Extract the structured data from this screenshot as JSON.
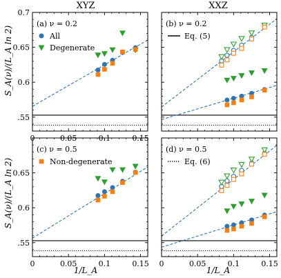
{
  "column_titles": [
    "XYZ",
    "XXZ"
  ],
  "ylabel": "S_A(ν)/(L_A ln 2)",
  "xlabel": "1/L_A",
  "colors": {
    "all": "#2e75b6",
    "degenerate": "#2ca02c",
    "nondegenerate": "#ff7f0e",
    "fit": "#2e75b6",
    "exact": "#000000"
  },
  "icons": {
    "all": "blue-circle-marker",
    "degenerate": "green-down-triangle-marker",
    "nondegenerate": "orange-square-marker",
    "eq5": "solid-black-line",
    "eq6": "dotted-black-line"
  },
  "chart_data": [
    {
      "id": "a",
      "panel_label": "(a)  ν = 0.2",
      "column": "XYZ",
      "type": "scatter",
      "xlim": [
        0,
        0.16
      ],
      "ylim": [
        0.53,
        0.7
      ],
      "xticks": [
        0,
        0.05,
        0.1,
        0.15
      ],
      "xtick_labels": [
        "0",
        "0.05",
        "0.1",
        "0.15"
      ],
      "yticks": [
        0.55,
        0.6,
        0.65,
        0.7
      ],
      "ytick_labels": [
        ".55",
        "0.6",
        "0.65",
        "0.7"
      ],
      "legend": [
        {
          "label": "All",
          "marker": "circle",
          "color": "#2e75b6"
        },
        {
          "label": "Degenerate",
          "marker": "triangle-down",
          "color": "#2ca02c"
        }
      ],
      "series": [
        {
          "name": "All",
          "marker": "circle",
          "filled": true,
          "color": "#2e75b6",
          "x": [
            0.0909,
            0.1,
            0.1111,
            0.125,
            0.1429
          ],
          "y": [
            0.6175,
            0.6255,
            0.6315,
            0.6425,
            0.6495
          ]
        },
        {
          "name": "Degenerate",
          "marker": "triangle-down",
          "filled": true,
          "color": "#2ca02c",
          "x": [
            0.0909,
            0.1,
            0.1111,
            0.125,
            0.1429
          ],
          "y": [
            0.639,
            0.641,
            0.6465,
            0.6705,
            0.646
          ]
        },
        {
          "name": "Non-degenerate",
          "marker": "square",
          "filled": true,
          "color": "#ff7f0e",
          "x": [
            0.0909,
            0.1,
            0.1111,
            0.125,
            0.1429
          ],
          "y": [
            0.611,
            0.6185,
            0.627,
            0.6435,
            0.647
          ]
        }
      ],
      "fits": [
        {
          "x": [
            0,
            0.16
          ],
          "y": [
            0.5655,
            0.6605
          ],
          "style": "dashed",
          "color": "#2e75b6"
        }
      ],
      "hlines": [
        {
          "y": 0.5528,
          "style": "solid"
        },
        {
          "y": 0.5385,
          "style": "dotted"
        }
      ]
    },
    {
      "id": "b",
      "panel_label": "(b)  ν = 0.2",
      "column": "XXZ",
      "type": "scatter",
      "xlim": [
        0,
        0.16
      ],
      "ylim": [
        0.53,
        0.7
      ],
      "xticks": [
        0,
        0.05,
        0.1,
        0.15
      ],
      "xtick_labels": [
        "",
        "",
        "",
        ""
      ],
      "yticks": [
        0.55,
        0.6,
        0.65,
        0.7
      ],
      "ytick_labels": [
        "",
        "",
        "",
        ""
      ],
      "legend": [
        {
          "label": "Eq. (5)",
          "marker": "solid-line",
          "color": "#000000"
        }
      ],
      "series": [
        {
          "name": "All (upper)",
          "marker": "circle",
          "filled": false,
          "color": "#2e75b6",
          "x": [
            0.0833,
            0.0909,
            0.1,
            0.1111,
            0.125,
            0.1429
          ],
          "y": [
            0.6305,
            0.6385,
            0.6455,
            0.653,
            0.664,
            0.68
          ]
        },
        {
          "name": "Degenerate (upper)",
          "marker": "triangle-down",
          "filled": false,
          "color": "#2ca02c",
          "x": [
            0.0833,
            0.0909,
            0.1,
            0.1111,
            0.125,
            0.1429
          ],
          "y": [
            0.6365,
            0.6465,
            0.6545,
            0.6625,
            0.6705,
            0.6815
          ]
        },
        {
          "name": "Non-degenerate (upper)",
          "marker": "square",
          "filled": false,
          "color": "#ff7f0e",
          "x": [
            0.0833,
            0.0909,
            0.1,
            0.1111,
            0.125,
            0.1429
          ],
          "y": [
            0.6245,
            0.632,
            0.6415,
            0.6485,
            0.662,
            0.679
          ]
        },
        {
          "name": "All (lower)",
          "marker": "circle",
          "filled": true,
          "color": "#2e75b6",
          "x": [
            0.0909,
            0.1,
            0.1111,
            0.125,
            0.1429
          ],
          "y": [
            0.5745,
            0.577,
            0.58,
            0.584,
            0.5895
          ]
        },
        {
          "name": "Degenerate (lower)",
          "marker": "triangle-down",
          "filled": true,
          "color": "#2ca02c",
          "x": [
            0.0909,
            0.1,
            0.1111,
            0.125,
            0.1429
          ],
          "y": [
            0.603,
            0.6055,
            0.6095,
            0.6135,
            0.6165
          ]
        },
        {
          "name": "Non-degenerate (lower)",
          "marker": "square",
          "filled": true,
          "color": "#ff7f0e",
          "x": [
            0.0909,
            0.1,
            0.1111,
            0.125,
            0.1429
          ],
          "y": [
            0.5675,
            0.5705,
            0.5745,
            0.579,
            0.5885
          ]
        }
      ],
      "fits": [
        {
          "x": [
            0,
            0.16
          ],
          "y": [
            0.5645,
            0.691
          ],
          "style": "dashed",
          "color": "#2e75b6"
        },
        {
          "x": [
            0,
            0.16
          ],
          "y": [
            0.5465,
            0.5955
          ],
          "style": "dashed",
          "color": "#2e75b6"
        }
      ],
      "hlines": [
        {
          "y": 0.5528,
          "style": "solid"
        },
        {
          "y": 0.5385,
          "style": "dotted"
        }
      ]
    },
    {
      "id": "c",
      "panel_label": "(c)  ν = 0.5",
      "column": "XYZ",
      "type": "scatter",
      "xlim": [
        0,
        0.16
      ],
      "ylim": [
        0.53,
        0.7
      ],
      "xticks": [
        0,
        0.05,
        0.1,
        0.15
      ],
      "xtick_labels": [
        "0",
        "0.05",
        "0.1",
        "0.15"
      ],
      "yticks": [
        0.55,
        0.6,
        0.65,
        0.7
      ],
      "ytick_labels": [
        ".55",
        "0.6",
        "0.65",
        ""
      ],
      "legend": [
        {
          "label": "Non-degenerate",
          "marker": "square",
          "color": "#ff7f0e"
        }
      ],
      "series": [
        {
          "name": "All",
          "marker": "circle",
          "filled": true,
          "color": "#2e75b6",
          "x": [
            0.0909,
            0.1,
            0.1111,
            0.125,
            0.1429
          ],
          "y": [
            0.6175,
            0.623,
            0.629,
            0.638,
            0.651
          ]
        },
        {
          "name": "Degenerate",
          "marker": "triangle-down",
          "filled": true,
          "color": "#2ca02c",
          "x": [
            0.0909,
            0.1,
            0.1111,
            0.125,
            0.1429
          ],
          "y": [
            0.642,
            0.637,
            0.6545,
            0.6545,
            0.6595
          ]
        },
        {
          "name": "Non-degenerate",
          "marker": "square",
          "filled": true,
          "color": "#ff7f0e",
          "x": [
            0.0909,
            0.1,
            0.1111,
            0.125,
            0.1429
          ],
          "y": [
            0.611,
            0.6165,
            0.623,
            0.636,
            0.6505
          ]
        }
      ],
      "fits": [
        {
          "x": [
            0,
            0.16
          ],
          "y": [
            0.5565,
            0.6585
          ],
          "style": "dashed",
          "color": "#2e75b6"
        }
      ],
      "hlines": [
        {
          "y": 0.5528,
          "style": "solid"
        },
        {
          "y": 0.5385,
          "style": "dotted"
        }
      ]
    },
    {
      "id": "d",
      "panel_label": "(d)  ν = 0.5",
      "column": "XXZ",
      "type": "scatter",
      "xlim": [
        0,
        0.16
      ],
      "ylim": [
        0.53,
        0.7
      ],
      "xticks": [
        0,
        0.05,
        0.1,
        0.15
      ],
      "xtick_labels": [
        "0",
        "0.05",
        "0.1",
        "0.15"
      ],
      "yticks": [
        0.55,
        0.6,
        0.65,
        0.7
      ],
      "ytick_labels": [
        "",
        "",
        "",
        ""
      ],
      "legend": [
        {
          "label": "Eq. (6)",
          "marker": "dotted-line",
          "color": "#000000"
        }
      ],
      "series": [
        {
          "name": "All (upper)",
          "marker": "circle",
          "filled": false,
          "color": "#2e75b6",
          "x": [
            0.0833,
            0.0909,
            0.1,
            0.1111,
            0.125,
            0.1429
          ],
          "y": [
            0.6305,
            0.6385,
            0.645,
            0.6535,
            0.664,
            0.678
          ]
        },
        {
          "name": "Degenerate (upper)",
          "marker": "triangle-down",
          "filled": false,
          "color": "#2ca02c",
          "x": [
            0.0833,
            0.0909,
            0.1,
            0.1111,
            0.125,
            0.1429
          ],
          "y": [
            0.6365,
            0.6455,
            0.654,
            0.662,
            0.6695,
            0.683
          ]
        },
        {
          "name": "Non-degenerate (upper)",
          "marker": "square",
          "filled": false,
          "color": "#ff7f0e",
          "x": [
            0.0833,
            0.0909,
            0.1,
            0.1111,
            0.125,
            0.1429
          ],
          "y": [
            0.6245,
            0.632,
            0.6405,
            0.6485,
            0.6625,
            0.6765
          ]
        },
        {
          "name": "All (lower)",
          "marker": "circle",
          "filled": true,
          "color": "#2e75b6",
          "x": [
            0.0909,
            0.1,
            0.1111,
            0.125,
            0.1429
          ],
          "y": [
            0.5735,
            0.5755,
            0.5785,
            0.5825,
            0.5895
          ]
        },
        {
          "name": "Degenerate (lower)",
          "marker": "triangle-down",
          "filled": true,
          "color": "#2ca02c",
          "x": [
            0.0909,
            0.1,
            0.1111,
            0.125,
            0.1429
          ],
          "y": [
            0.5955,
            0.602,
            0.6055,
            0.6095,
            0.618
          ]
        },
        {
          "name": "Non-degenerate (lower)",
          "marker": "square",
          "filled": true,
          "color": "#ff7f0e",
          "x": [
            0.0909,
            0.1,
            0.1111,
            0.125,
            0.1429
          ],
          "y": [
            0.5675,
            0.5695,
            0.5735,
            0.5775,
            0.587
          ]
        }
      ],
      "fits": [
        {
          "x": [
            0,
            0.16
          ],
          "y": [
            0.5595,
            0.6895
          ],
          "style": "dashed",
          "color": "#2e75b6"
        },
        {
          "x": [
            0,
            0.16
          ],
          "y": [
            0.5435,
            0.5945
          ],
          "style": "dashed",
          "color": "#2e75b6"
        }
      ],
      "hlines": [
        {
          "y": 0.5528,
          "style": "solid"
        },
        {
          "y": 0.5385,
          "style": "dotted"
        }
      ]
    }
  ]
}
